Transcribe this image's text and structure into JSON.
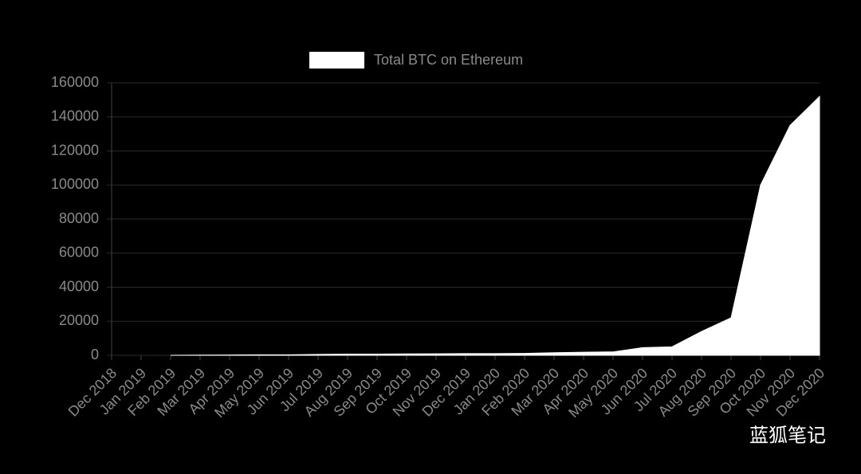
{
  "chart_data": {
    "type": "area",
    "categories": [
      "Dec 2018",
      "Jan 2019",
      "Feb 2019",
      "Mar 2019",
      "Apr 2019",
      "May 2019",
      "Jun 2019",
      "Jul 2019",
      "Aug 2019",
      "Sep 2019",
      "Oct 2019",
      "Nov 2019",
      "Dec 2019",
      "Jan 2020",
      "Feb 2020",
      "Mar 2020",
      "Apr 2020",
      "May 2020",
      "Jun 2020",
      "Jul 2020",
      "Aug 2020",
      "Sep 2020",
      "Oct 2020",
      "Nov 2020",
      "Dec 2020"
    ],
    "series": [
      {
        "name": "Total BTC on Ethereum",
        "color": "#ffffff",
        "values": [
          null,
          null,
          0,
          100,
          200,
          300,
          300,
          500,
          700,
          700,
          800,
          900,
          1000,
          1000,
          1100,
          1500,
          1800,
          2000,
          4500,
          5000,
          14000,
          22000,
          100000,
          135000,
          152000
        ]
      }
    ],
    "ylim": [
      0,
      160000
    ],
    "yticks": [
      0,
      20000,
      40000,
      60000,
      80000,
      100000,
      120000,
      140000,
      160000
    ],
    "grid": true,
    "legend": "top",
    "annotations": [
      "蓝狐笔记"
    ]
  }
}
